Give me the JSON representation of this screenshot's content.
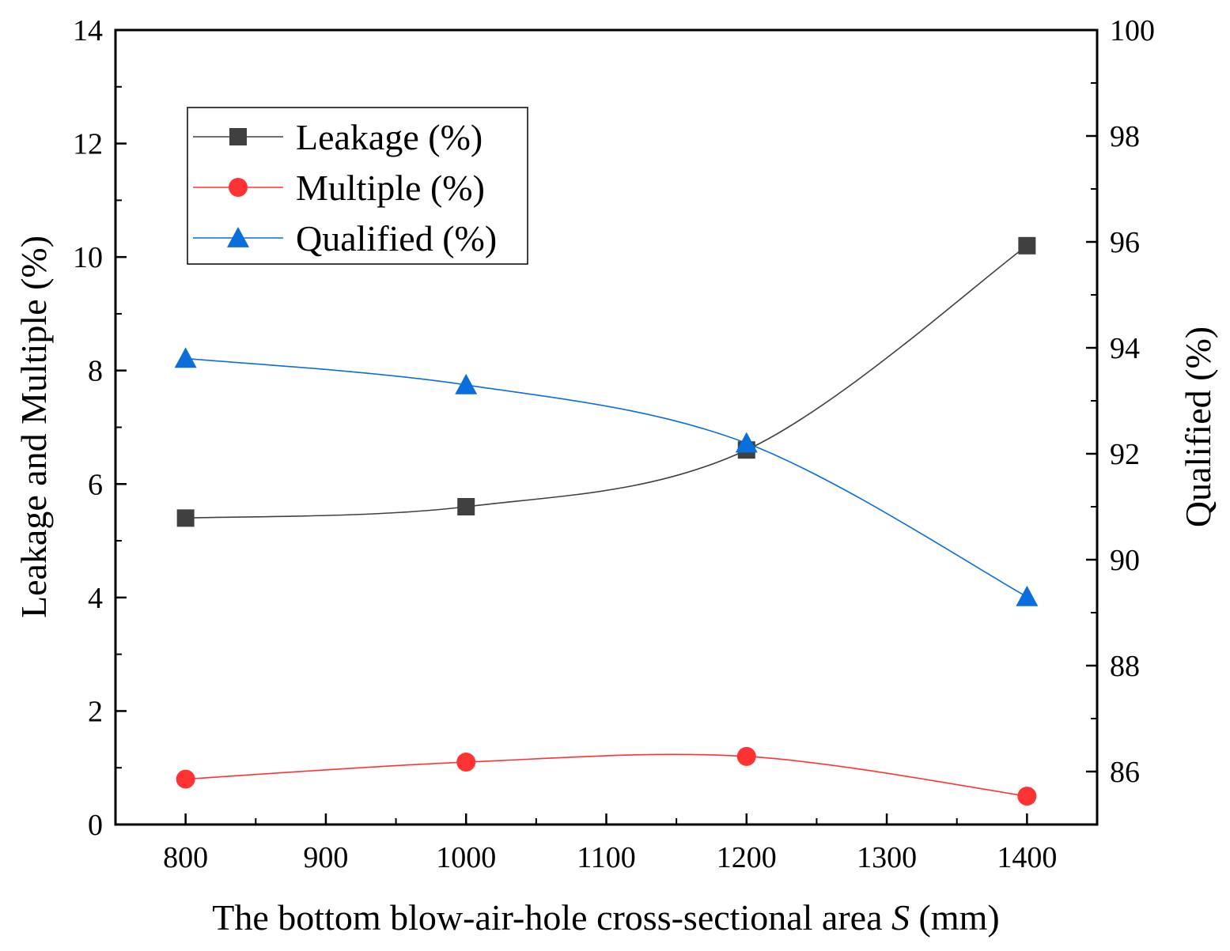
{
  "chart_data": {
    "type": "line",
    "title": "",
    "xlabel": "The bottom blow-air-hole cross-sectional area ",
    "xlabel_var": "S",
    "xlabel_unit": " (mm)",
    "ylabel_left": "Leakage and Multiple (%)",
    "ylabel_right": "Qualified (%)",
    "xlim": [
      750,
      1450
    ],
    "ylim_left": [
      0,
      14
    ],
    "ylim_right": [
      85,
      100
    ],
    "x_ticks": [
      800,
      900,
      1000,
      1100,
      1200,
      1300,
      1400
    ],
    "y_left_ticks": [
      0,
      2,
      4,
      6,
      8,
      10,
      12,
      14
    ],
    "y_right_ticks": [
      86,
      88,
      90,
      92,
      94,
      96,
      98,
      100
    ],
    "x": [
      800,
      1000,
      1200,
      1400
    ],
    "series": [
      {
        "name": "Leakage (%)",
        "axis": "left",
        "marker": "square",
        "color": "#404040",
        "values": [
          5.4,
          5.6,
          6.6,
          10.2
        ]
      },
      {
        "name": "Multiple (%)",
        "axis": "left",
        "marker": "circle",
        "color": "#ff3333",
        "values": [
          0.8,
          1.1,
          1.2,
          0.5
        ]
      },
      {
        "name": "Qualified (%)",
        "axis": "right",
        "marker": "triangle",
        "color": "#0a6fdc",
        "values": [
          93.8,
          93.3,
          92.2,
          89.3
        ]
      }
    ],
    "legend_position": "top-left",
    "grid": false
  }
}
